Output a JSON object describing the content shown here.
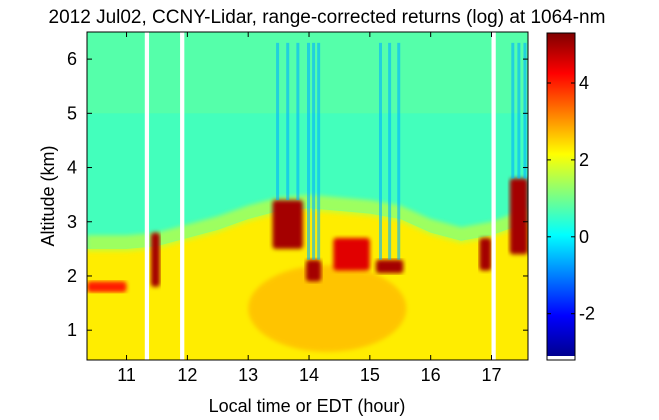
{
  "chart_data": {
    "type": "heatmap",
    "title": "2012 Jul02, CCNY-Lidar, range-corrected returns (log) at 1064-nm",
    "xlabel": "Local time or EDT (hour)",
    "ylabel": "Altitude (km)",
    "xlim": [
      10.35,
      17.6
    ],
    "ylim": [
      0.45,
      6.5
    ],
    "x_ticks": [
      "11",
      "12",
      "13",
      "14",
      "15",
      "16",
      "17"
    ],
    "y_ticks": [
      "1",
      "2",
      "3",
      "4",
      "5",
      "6"
    ],
    "colorbar": {
      "range": [
        -3.1,
        5.3
      ],
      "ticks": [
        "-2",
        "0",
        "2",
        "4"
      ]
    },
    "data_gaps": [
      [
        11.3,
        11.37
      ],
      [
        11.88,
        11.95
      ],
      [
        17.0,
        17.07
      ]
    ],
    "boundary_layer_top_km": [
      [
        10.35,
        2.5
      ],
      [
        11.0,
        2.5
      ],
      [
        11.5,
        2.55
      ],
      [
        12.0,
        2.7
      ],
      [
        12.5,
        2.85
      ],
      [
        13.0,
        3.05
      ],
      [
        13.5,
        3.2
      ],
      [
        14.0,
        3.25
      ],
      [
        14.5,
        3.2
      ],
      [
        15.0,
        3.15
      ],
      [
        15.5,
        3.05
      ],
      [
        16.0,
        2.8
      ],
      [
        16.5,
        2.65
      ],
      [
        17.0,
        2.75
      ],
      [
        17.6,
        3.0
      ]
    ],
    "cloud_layers": [
      {
        "x": [
          10.35,
          11.0
        ],
        "alt_km": [
          1.7,
          1.9
        ],
        "value": 4.0
      },
      {
        "x": [
          11.4,
          11.55
        ],
        "alt_km": [
          1.8,
          2.8
        ],
        "value": 5.0
      },
      {
        "x": [
          13.4,
          13.9
        ],
        "alt_km": [
          2.5,
          3.4
        ],
        "value": 5.0
      },
      {
        "x": [
          13.95,
          14.2
        ],
        "alt_km": [
          1.9,
          2.3
        ],
        "value": 5.0
      },
      {
        "x": [
          14.4,
          15.0
        ],
        "alt_km": [
          2.1,
          2.7
        ],
        "value": 4.5
      },
      {
        "x": [
          15.1,
          15.55
        ],
        "alt_km": [
          2.05,
          2.3
        ],
        "value": 5.0
      },
      {
        "x": [
          16.8,
          17.0
        ],
        "alt_km": [
          2.1,
          2.7
        ],
        "value": 5.0
      },
      {
        "x": [
          17.3,
          17.6
        ],
        "alt_km": [
          2.4,
          3.8
        ],
        "value": 5.0
      }
    ],
    "aerosol_layer": {
      "alt_km": [
        0.45,
        2.7
      ],
      "value": 2.3
    },
    "free_troposphere_value": 0.6
  }
}
